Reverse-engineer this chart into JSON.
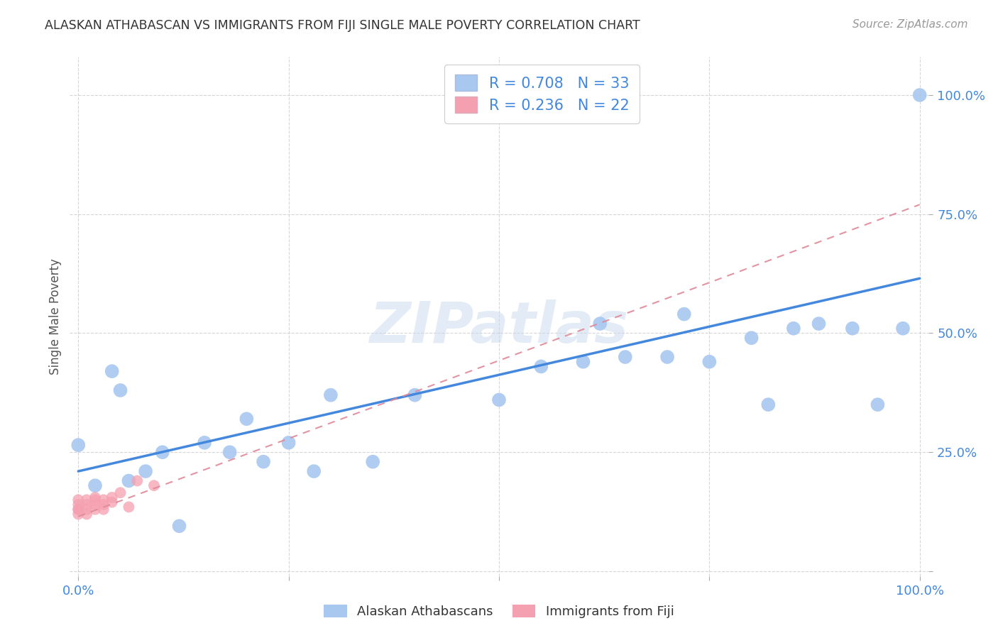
{
  "title": "ALASKAN ATHABASCAN VS IMMIGRANTS FROM FIJI SINGLE MALE POVERTY CORRELATION CHART",
  "source": "Source: ZipAtlas.com",
  "ylabel": "Single Male Poverty",
  "legend_label1": "Alaskan Athabascans",
  "legend_label2": "Immigrants from Fiji",
  "R1": 0.708,
  "N1": 33,
  "R2": 0.236,
  "N2": 22,
  "color_blue": "#a8c8f0",
  "color_pink": "#f5a0b0",
  "line_blue": "#4488dd",
  "line_pink": "#e08898",
  "blue_points_x": [
    0.0,
    0.02,
    0.04,
    0.05,
    0.06,
    0.08,
    0.1,
    0.12,
    0.15,
    0.18,
    0.2,
    0.22,
    0.25,
    0.28,
    0.3,
    0.35,
    0.4,
    0.5,
    0.55,
    0.6,
    0.62,
    0.65,
    0.7,
    0.72,
    0.75,
    0.8,
    0.82,
    0.85,
    0.88,
    0.92,
    0.95,
    0.98,
    1.0
  ],
  "blue_points_y": [
    0.265,
    0.18,
    0.42,
    0.38,
    0.19,
    0.21,
    0.25,
    0.095,
    0.27,
    0.25,
    0.32,
    0.23,
    0.27,
    0.21,
    0.37,
    0.23,
    0.37,
    0.36,
    0.43,
    0.44,
    0.52,
    0.45,
    0.45,
    0.54,
    0.44,
    0.49,
    0.35,
    0.51,
    0.52,
    0.51,
    0.35,
    0.51,
    1.0
  ],
  "pink_points_x": [
    0.0,
    0.0,
    0.0,
    0.0,
    0.0,
    0.01,
    0.01,
    0.01,
    0.01,
    0.02,
    0.02,
    0.02,
    0.02,
    0.03,
    0.03,
    0.03,
    0.04,
    0.04,
    0.05,
    0.06,
    0.07,
    0.09
  ],
  "pink_points_y": [
    0.12,
    0.13,
    0.13,
    0.14,
    0.15,
    0.12,
    0.13,
    0.14,
    0.15,
    0.13,
    0.14,
    0.15,
    0.155,
    0.13,
    0.14,
    0.15,
    0.145,
    0.155,
    0.165,
    0.135,
    0.19,
    0.18
  ],
  "blue_line_x": [
    0.0,
    1.0
  ],
  "blue_line_y": [
    0.21,
    0.615
  ],
  "pink_line_x": [
    0.0,
    1.0
  ],
  "pink_line_y": [
    0.115,
    0.77
  ],
  "xlim": [
    -0.01,
    1.01
  ],
  "ylim": [
    -0.01,
    1.08
  ],
  "watermark": "ZIPatlas",
  "background_color": "#ffffff",
  "grid_color": "#cccccc",
  "yticks": [
    0.0,
    0.25,
    0.5,
    0.75,
    1.0
  ],
  "xticks": [
    0.0,
    0.25,
    0.5,
    0.75,
    1.0
  ]
}
